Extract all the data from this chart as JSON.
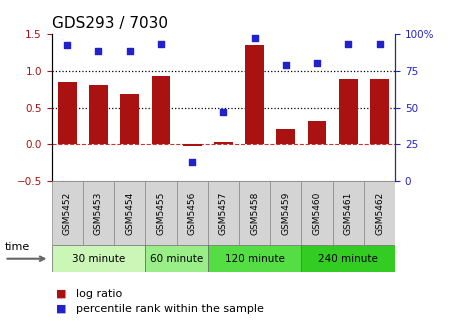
{
  "title": "GDS293 / 7030",
  "samples": [
    "GSM5452",
    "GSM5453",
    "GSM5454",
    "GSM5455",
    "GSM5456",
    "GSM5457",
    "GSM5458",
    "GSM5459",
    "GSM5460",
    "GSM5461",
    "GSM5462"
  ],
  "log_ratio": [
    0.85,
    0.8,
    0.68,
    0.93,
    -0.02,
    0.04,
    1.35,
    0.21,
    0.32,
    0.88,
    0.88
  ],
  "percentile": [
    92,
    88,
    88,
    93,
    13,
    47,
    97,
    79,
    80,
    93,
    93
  ],
  "ylim_left": [
    -0.5,
    1.5
  ],
  "ylim_right": [
    0,
    100
  ],
  "yticks_left": [
    -0.5,
    0.0,
    0.5,
    1.0,
    1.5
  ],
  "yticks_right": [
    0,
    25,
    50,
    75,
    100
  ],
  "ytick_labels_right": [
    "0",
    "25",
    "50",
    "75",
    "100%"
  ],
  "dotted_lines": [
    1.0,
    0.5
  ],
  "bar_color": "#aa1111",
  "dot_color": "#2222cc",
  "zero_line_color": "#cc3333",
  "time_groups": [
    {
      "label": "30 minute",
      "start": 0,
      "end": 3,
      "color": "#ccf5b8"
    },
    {
      "label": "60 minute",
      "start": 3,
      "end": 5,
      "color": "#99ee88"
    },
    {
      "label": "120 minute",
      "start": 5,
      "end": 8,
      "color": "#55dd44"
    },
    {
      "label": "240 minute",
      "start": 8,
      "end": 11,
      "color": "#33cc22"
    }
  ],
  "time_label": "time",
  "legend_bar_label": "log ratio",
  "legend_dot_label": "percentile rank within the sample",
  "bg_color": "#ffffff",
  "tick_label_color_left": "#aa1111",
  "tick_label_color_right": "#2222cc",
  "title_fontsize": 11,
  "axis_fontsize": 7.5,
  "legend_fontsize": 8,
  "sample_box_color": "#d4d4d4",
  "sample_box_edge": "#888888"
}
